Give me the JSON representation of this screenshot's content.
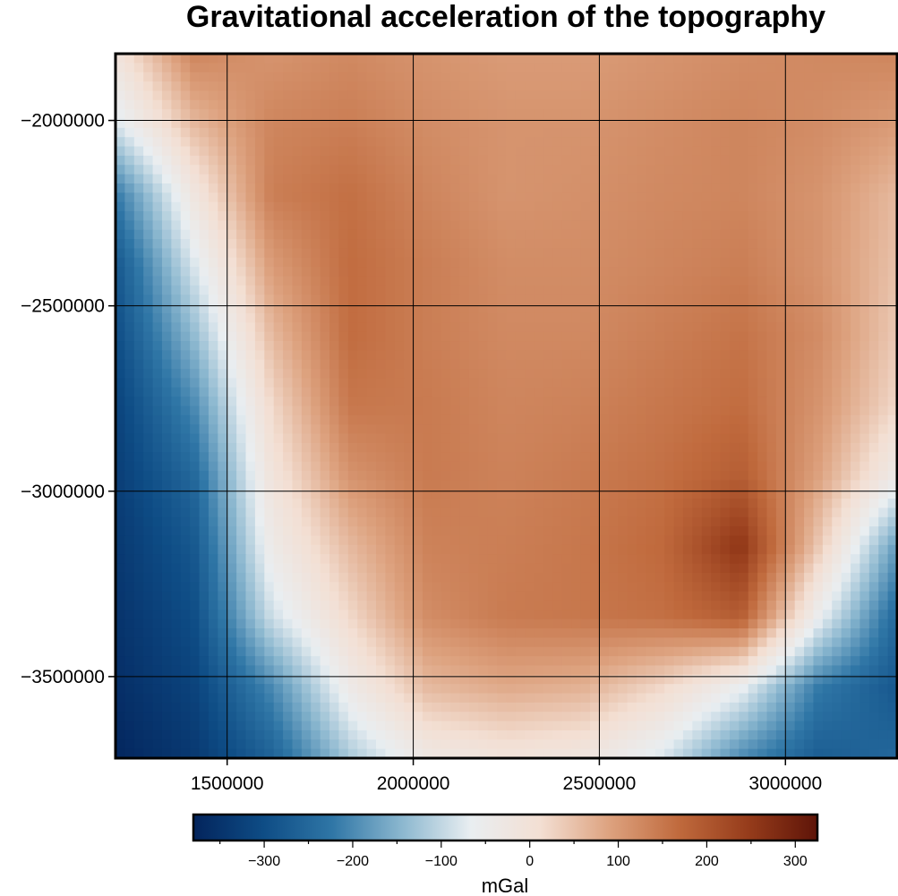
{
  "chart_data": {
    "type": "heatmap",
    "title": "Gravitational acceleration of the topography",
    "xlim": [
      1200000,
      3300000
    ],
    "ylim": [
      -3720000,
      -1820000
    ],
    "x_ticks": [
      1500000,
      2000000,
      2500000,
      3000000
    ],
    "x_tick_labels": [
      "1500000",
      "2000000",
      "2500000",
      "3000000"
    ],
    "y_ticks": [
      -2000000,
      -2500000,
      -3000000,
      -3500000
    ],
    "y_tick_labels": [
      "−2000000",
      "−2500000",
      "−3000000",
      "−3500000"
    ],
    "grid": true,
    "colorbar": {
      "label": "mGal",
      "range": [
        -380,
        325
      ],
      "ticks": [
        -300,
        -200,
        -100,
        0,
        100,
        200,
        300
      ],
      "tick_labels": [
        "−300",
        "−200",
        "−100",
        "0",
        "100",
        "200",
        "300"
      ],
      "orientation": "horizontal",
      "position": "bottom"
    },
    "colormap": [
      "#03245c",
      "#0e4c85",
      "#2f76a6",
      "#8bb7cf",
      "#e9eef1",
      "#f3dfd3",
      "#dda27f",
      "#c06a3d",
      "#963c1b",
      "#5e1408"
    ],
    "grid_values": {
      "x": [
        1200000,
        1410000,
        1620000,
        1830000,
        2040000,
        2250000,
        2460000,
        2670000,
        2880000,
        3090000,
        3300000
      ],
      "y": [
        -1820000,
        -2010000,
        -2200000,
        -2390000,
        -2580000,
        -2770000,
        -2960000,
        -3150000,
        -3340000,
        -3530000,
        -3720000
      ],
      "z": [
        [
          -10,
          130,
          110,
          125,
          110,
          100,
          100,
          110,
          120,
          125,
          130
        ],
        [
          -80,
          60,
          130,
          140,
          120,
          110,
          110,
          120,
          130,
          120,
          100
        ],
        [
          -220,
          -20,
          140,
          160,
          130,
          110,
          115,
          125,
          130,
          110,
          60
        ],
        [
          -280,
          -80,
          100,
          165,
          140,
          120,
          120,
          130,
          140,
          110,
          50
        ],
        [
          -300,
          -140,
          60,
          165,
          140,
          125,
          125,
          140,
          155,
          120,
          40
        ],
        [
          -320,
          -200,
          20,
          150,
          145,
          130,
          135,
          150,
          165,
          110,
          20
        ],
        [
          -330,
          -250,
          -10,
          110,
          145,
          135,
          145,
          160,
          190,
          90,
          -40
        ],
        [
          -340,
          -280,
          -40,
          60,
          135,
          140,
          150,
          170,
          260,
          40,
          -180
        ],
        [
          -350,
          -300,
          -90,
          20,
          120,
          145,
          150,
          160,
          190,
          -60,
          -250
        ],
        [
          -360,
          -320,
          -200,
          -40,
          60,
          80,
          70,
          20,
          -60,
          -220,
          -280
        ],
        [
          -375,
          -340,
          -260,
          -120,
          -30,
          -10,
          -20,
          -80,
          -200,
          -270,
          -250
        ]
      ]
    }
  }
}
